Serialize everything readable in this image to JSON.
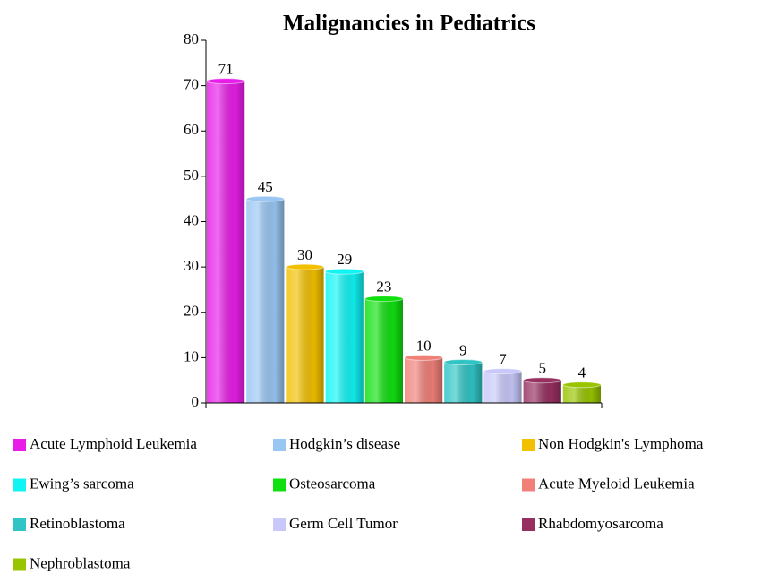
{
  "chart_data": {
    "type": "bar",
    "title": "Malignancies in Pediatrics",
    "categories": [
      "Acute Lymphoid Leukemia",
      "Hodgkin’s disease",
      "Non Hodgkin's Lymphoma",
      "Ewing’s sarcoma",
      "Osteosarcoma",
      "Acute Myeloid Leukemia",
      "Retinoblastoma",
      "Germ Cell Tumor",
      "Rhabdomyosarcoma",
      "Nephroblastoma"
    ],
    "values": [
      71,
      45,
      30,
      29,
      23,
      10,
      9,
      7,
      5,
      4
    ],
    "colors": [
      "#e81ee8",
      "#99c6f2",
      "#f2c000",
      "#10f4f4",
      "#10e010",
      "#f08078",
      "#30c4c4",
      "#c8c8fa",
      "#963060",
      "#98c400"
    ],
    "ylim": [
      0,
      80
    ],
    "yticks": [
      0,
      10,
      20,
      30,
      40,
      50,
      60,
      70,
      80
    ],
    "legend": "bottom"
  }
}
